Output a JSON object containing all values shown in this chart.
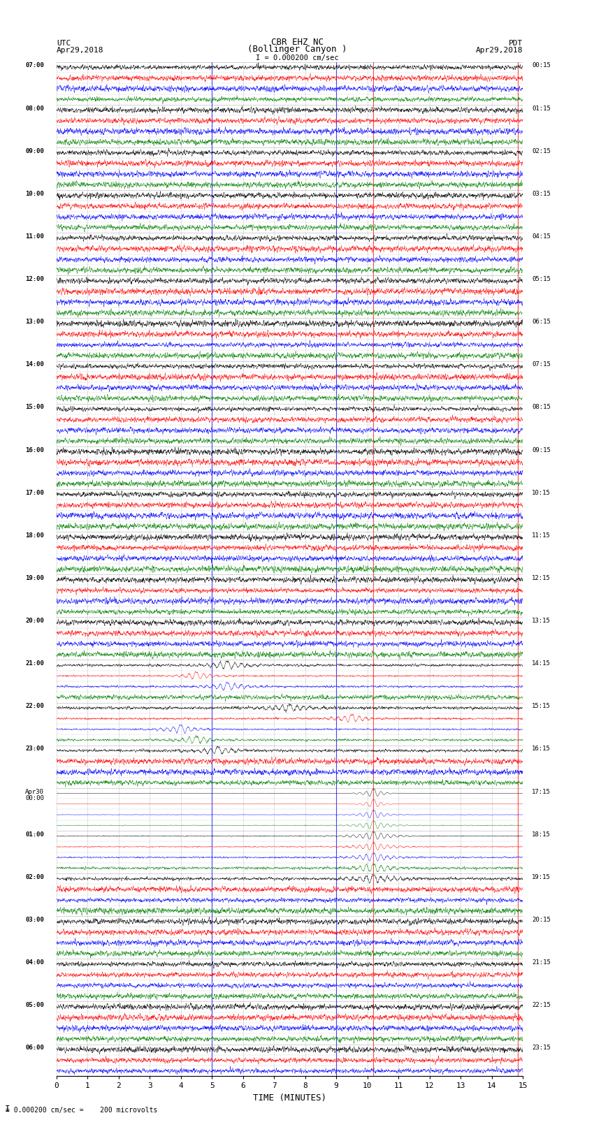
{
  "title_line1": "CBR EHZ NC",
  "title_line2": "(Bollinger Canyon )",
  "scale_label": "I = 0.000200 cm/sec",
  "bottom_label": "TIME (MINUTES)",
  "bottom_note": "= 0.000200 cm/sec =    200 microvolts",
  "xlim": [
    0,
    15
  ],
  "bg_color": "#ffffff",
  "trace_colors": [
    "black",
    "red",
    "blue",
    "green"
  ],
  "utc_labels": [
    [
      "07:00",
      0
    ],
    [
      "08:00",
      4
    ],
    [
      "09:00",
      8
    ],
    [
      "10:00",
      12
    ],
    [
      "11:00",
      16
    ],
    [
      "12:00",
      20
    ],
    [
      "13:00",
      24
    ],
    [
      "14:00",
      28
    ],
    [
      "15:00",
      32
    ],
    [
      "16:00",
      36
    ],
    [
      "17:00",
      40
    ],
    [
      "18:00",
      44
    ],
    [
      "19:00",
      48
    ],
    [
      "20:00",
      52
    ],
    [
      "21:00",
      56
    ],
    [
      "22:00",
      60
    ],
    [
      "23:00",
      64
    ],
    [
      "Apr30\n00:00",
      68
    ],
    [
      "01:00",
      72
    ],
    [
      "02:00",
      76
    ],
    [
      "03:00",
      80
    ],
    [
      "04:00",
      84
    ],
    [
      "05:00",
      88
    ],
    [
      "06:00",
      92
    ]
  ],
  "pdt_labels": [
    [
      "00:15",
      0
    ],
    [
      "01:15",
      4
    ],
    [
      "02:15",
      8
    ],
    [
      "03:15",
      12
    ],
    [
      "04:15",
      16
    ],
    [
      "05:15",
      20
    ],
    [
      "06:15",
      24
    ],
    [
      "07:15",
      28
    ],
    [
      "08:15",
      32
    ],
    [
      "09:15",
      36
    ],
    [
      "10:15",
      40
    ],
    [
      "11:15",
      44
    ],
    [
      "12:15",
      48
    ],
    [
      "13:15",
      52
    ],
    [
      "14:15",
      56
    ],
    [
      "15:15",
      60
    ],
    [
      "16:15",
      64
    ],
    [
      "17:15",
      68
    ],
    [
      "18:15",
      72
    ],
    [
      "19:15",
      76
    ],
    [
      "20:15",
      80
    ],
    [
      "21:15",
      84
    ],
    [
      "22:15",
      88
    ],
    [
      "23:15",
      92
    ]
  ],
  "grid_color": "#999999",
  "n_rows": 95,
  "spike_events": [
    {
      "row": 36,
      "color": "blue",
      "x": 5.0,
      "amplitude": 30,
      "decay": 8
    },
    {
      "row": 37,
      "color": "green",
      "x": 5.0,
      "amplitude": 5,
      "decay": 10
    },
    {
      "row": 38,
      "color": "black",
      "x": 5.0,
      "amplitude": 4,
      "decay": 10
    },
    {
      "row": 39,
      "color": "red",
      "x": 5.0,
      "amplitude": 4,
      "decay": 10
    },
    {
      "row": 40,
      "color": "blue",
      "x": 5.0,
      "amplitude": 25,
      "decay": 8
    },
    {
      "row": 41,
      "color": "green",
      "x": 5.0,
      "amplitude": 10,
      "decay": 10
    },
    {
      "row": 42,
      "color": "black",
      "x": 5.0,
      "amplitude": 5,
      "decay": 10
    },
    {
      "row": 43,
      "color": "red",
      "x": 5.0,
      "amplitude": 3,
      "decay": 10
    },
    {
      "row": 44,
      "color": "blue",
      "x": 9.0,
      "amplitude": 30,
      "decay": 8
    },
    {
      "row": 45,
      "color": "green",
      "x": 9.0,
      "amplitude": 5,
      "decay": 10
    },
    {
      "row": 36,
      "color": "blue",
      "x": 9.0,
      "amplitude": 20,
      "decay": 8
    },
    {
      "row": 37,
      "color": "green",
      "x": 9.0,
      "amplitude": 4,
      "decay": 10
    },
    {
      "row": 38,
      "color": "black",
      "x": 9.0,
      "amplitude": 3,
      "decay": 10
    },
    {
      "row": 39,
      "color": "red",
      "x": 9.0,
      "amplitude": 3,
      "decay": 10
    },
    {
      "row": 40,
      "color": "blue",
      "x": 9.0,
      "amplitude": 12,
      "decay": 10
    },
    {
      "row": 41,
      "color": "green",
      "x": 9.0,
      "amplitude": 5,
      "decay": 10
    },
    {
      "row": 44,
      "color": "blue",
      "x": 5.0,
      "amplitude": 15,
      "decay": 8
    },
    {
      "row": 45,
      "color": "green",
      "x": 5.0,
      "amplitude": 6,
      "decay": 10
    },
    {
      "row": 46,
      "color": "black",
      "x": 5.0,
      "amplitude": 4,
      "decay": 10
    },
    {
      "row": 47,
      "color": "red",
      "x": 5.0,
      "amplitude": 3,
      "decay": 10
    },
    {
      "row": 56,
      "color": "black",
      "x": 5.5,
      "amplitude": 5,
      "decay": 10
    },
    {
      "row": 57,
      "color": "red",
      "x": 4.5,
      "amplitude": 8,
      "decay": 8
    },
    {
      "row": 58,
      "color": "blue",
      "x": 5.5,
      "amplitude": 6,
      "decay": 10
    },
    {
      "row": 60,
      "color": "black",
      "x": 7.5,
      "amplitude": 4,
      "decay": 10
    },
    {
      "row": 61,
      "color": "red",
      "x": 9.5,
      "amplitude": 6,
      "decay": 8
    },
    {
      "row": 62,
      "color": "blue",
      "x": 4.0,
      "amplitude": 8,
      "decay": 8
    },
    {
      "row": 63,
      "color": "green",
      "x": 4.5,
      "amplitude": 5,
      "decay": 10
    },
    {
      "row": 64,
      "color": "black",
      "x": 5.2,
      "amplitude": 4,
      "decay": 10
    },
    {
      "row": 68,
      "color": "black",
      "x": 10.2,
      "amplitude": 40,
      "decay": 5
    },
    {
      "row": 69,
      "color": "red",
      "x": 10.2,
      "amplitude": 50,
      "decay": 4
    },
    {
      "row": 70,
      "color": "blue",
      "x": 10.2,
      "amplitude": 30,
      "decay": 6
    },
    {
      "row": 71,
      "color": "green",
      "x": 10.2,
      "amplitude": 20,
      "decay": 8
    },
    {
      "row": 72,
      "color": "black",
      "x": 10.2,
      "amplitude": 15,
      "decay": 10
    },
    {
      "row": 73,
      "color": "red",
      "x": 10.2,
      "amplitude": 12,
      "decay": 10
    },
    {
      "row": 74,
      "color": "blue",
      "x": 10.2,
      "amplitude": 8,
      "decay": 10
    },
    {
      "row": 75,
      "color": "green",
      "x": 10.2,
      "amplitude": 5,
      "decay": 10
    },
    {
      "row": 76,
      "color": "red",
      "x": 14.8,
      "amplitude": 8,
      "decay": 8
    },
    {
      "row": 77,
      "color": "blue",
      "x": 14.8,
      "amplitude": 6,
      "decay": 8
    },
    {
      "row": 84,
      "color": "red",
      "x": 4.8,
      "amplitude": 10,
      "decay": 6
    },
    {
      "row": 85,
      "color": "blue",
      "x": 4.8,
      "amplitude": 12,
      "decay": 6
    },
    {
      "row": 86,
      "color": "green",
      "x": 4.8,
      "amplitude": 5,
      "decay": 8
    },
    {
      "row": 87,
      "color": "red",
      "x": 7.5,
      "amplitude": 8,
      "decay": 8
    },
    {
      "row": 88,
      "color": "blue",
      "x": 7.5,
      "amplitude": 6,
      "decay": 8
    },
    {
      "row": 69,
      "color": "red",
      "x": 10.2,
      "amplitude": 30,
      "decay": 5
    },
    {
      "row": 76,
      "color": "black",
      "x": 10.2,
      "amplitude": 4,
      "decay": 12
    }
  ],
  "red_vlines": [
    10.2,
    14.85
  ],
  "blue_vlines": [
    5.0,
    9.0
  ]
}
